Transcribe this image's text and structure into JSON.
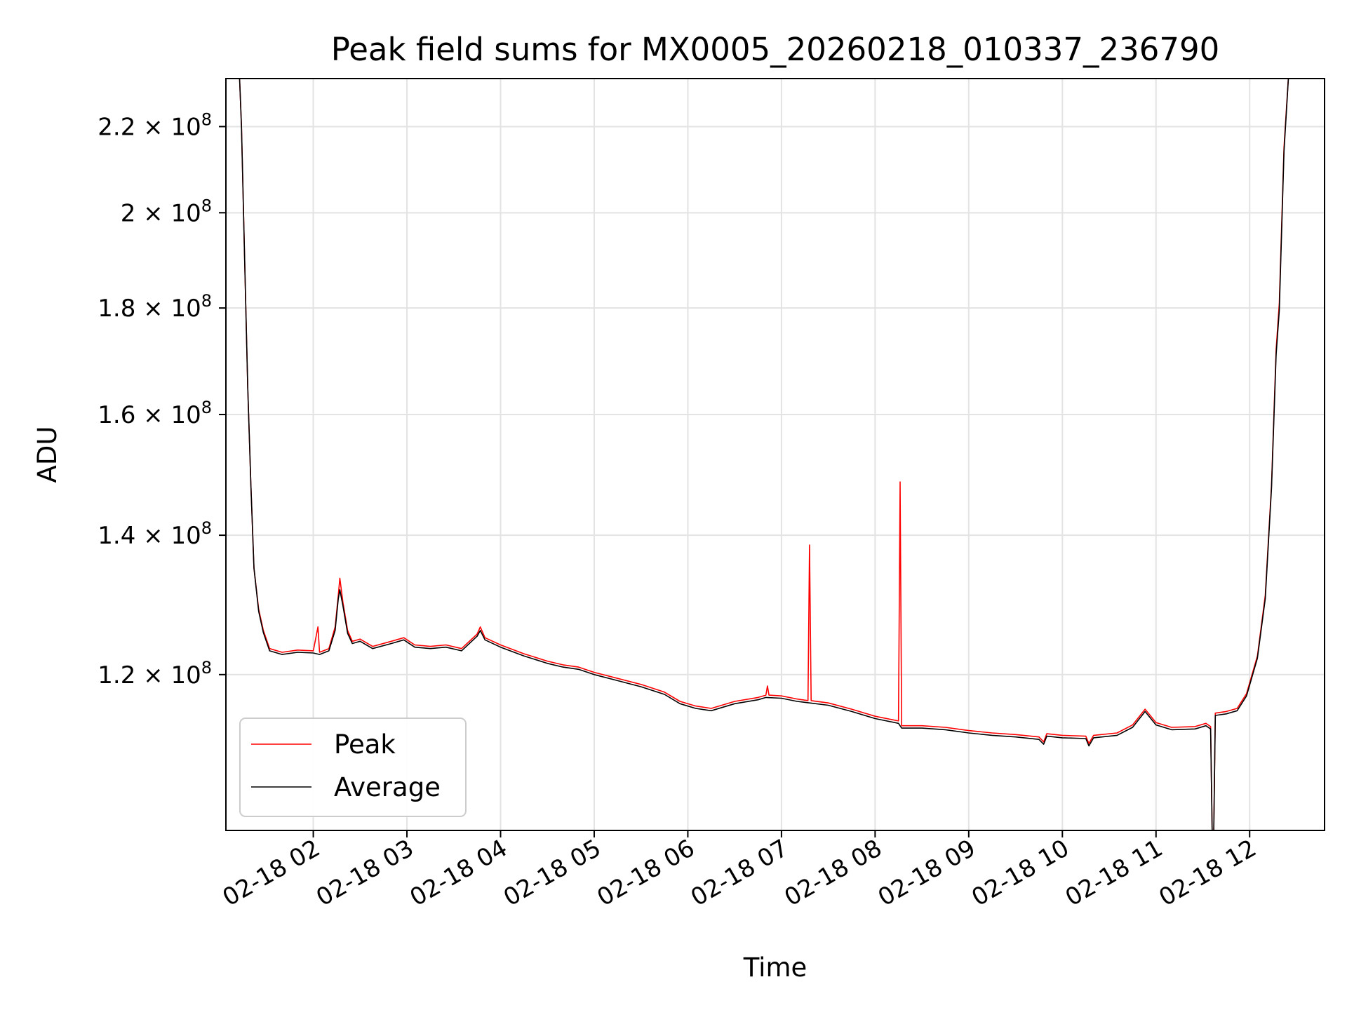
{
  "chart_data": {
    "type": "line",
    "title": "Peak field sums for MX0005_20260218_010337_236790",
    "xlabel": "Time",
    "ylabel": "ADU",
    "x_axis_type": "datetime",
    "xlim": [
      "2026-02-18 01:04",
      "2026-02-18 12:48"
    ],
    "ylim": [
      101000000,
      232000000
    ],
    "y_scale": "log",
    "grid": true,
    "legend_position": "lower-left",
    "colors": {
      "Peak": "#ff0000",
      "Average": "#000000"
    },
    "x_ticks": [
      "02-18 02",
      "02-18 03",
      "02-18 04",
      "02-18 05",
      "02-18 06",
      "02-18 07",
      "02-18 08",
      "02-18 09",
      "02-18 10",
      "02-18 11",
      "02-18 12"
    ],
    "y_ticks": [
      {
        "value": 120000000,
        "mantissa": "1.2",
        "exponent": "8"
      },
      {
        "value": 140000000,
        "mantissa": "1.4",
        "exponent": "8"
      },
      {
        "value": 160000000,
        "mantissa": "1.6",
        "exponent": "8"
      },
      {
        "value": 180000000,
        "mantissa": "1.8",
        "exponent": "8"
      },
      {
        "value": 200000000,
        "mantissa": "2",
        "exponent": "8"
      },
      {
        "value": 220000000,
        "mantissa": "2.2",
        "exponent": "8"
      }
    ],
    "series": [
      {
        "name": "Peak",
        "points": [
          [
            "2026-02-18 01:12",
            240000000
          ],
          [
            "2026-02-18 01:14",
            220000000
          ],
          [
            "2026-02-18 01:16",
            190000000
          ],
          [
            "2026-02-18 01:18",
            165000000
          ],
          [
            "2026-02-18 01:20",
            148000000
          ],
          [
            "2026-02-18 01:22",
            135000000
          ],
          [
            "2026-02-18 01:25",
            129000000
          ],
          [
            "2026-02-18 01:28",
            126000000
          ],
          [
            "2026-02-18 01:32",
            123500000
          ],
          [
            "2026-02-18 01:40",
            123000000
          ],
          [
            "2026-02-18 01:50",
            123300000
          ],
          [
            "2026-02-18 02:00",
            123200000
          ],
          [
            "2026-02-18 02:03",
            126500000
          ],
          [
            "2026-02-18 02:04",
            123000000
          ],
          [
            "2026-02-18 02:10",
            123500000
          ],
          [
            "2026-02-18 02:14",
            126500000
          ],
          [
            "2026-02-18 02:16",
            131000000
          ],
          [
            "2026-02-18 02:17",
            133500000
          ],
          [
            "2026-02-18 02:19",
            130000000
          ],
          [
            "2026-02-18 02:22",
            126000000
          ],
          [
            "2026-02-18 02:25",
            124500000
          ],
          [
            "2026-02-18 02:30",
            124800000
          ],
          [
            "2026-02-18 02:38",
            123800000
          ],
          [
            "2026-02-18 02:50",
            124500000
          ],
          [
            "2026-02-18 02:58",
            125000000
          ],
          [
            "2026-02-18 03:05",
            124000000
          ],
          [
            "2026-02-18 03:15",
            123800000
          ],
          [
            "2026-02-18 03:25",
            124000000
          ],
          [
            "2026-02-18 03:35",
            123500000
          ],
          [
            "2026-02-18 03:45",
            125500000
          ],
          [
            "2026-02-18 03:47",
            126500000
          ],
          [
            "2026-02-18 03:50",
            125000000
          ],
          [
            "2026-02-18 04:00",
            124000000
          ],
          [
            "2026-02-18 04:15",
            122800000
          ],
          [
            "2026-02-18 04:30",
            121800000
          ],
          [
            "2026-02-18 04:40",
            121300000
          ],
          [
            "2026-02-18 04:50",
            121000000
          ],
          [
            "2026-02-18 05:00",
            120300000
          ],
          [
            "2026-02-18 05:15",
            119500000
          ],
          [
            "2026-02-18 05:30",
            118700000
          ],
          [
            "2026-02-18 05:45",
            117700000
          ],
          [
            "2026-02-18 05:55",
            116500000
          ],
          [
            "2026-02-18 06:05",
            115900000
          ],
          [
            "2026-02-18 06:15",
            115600000
          ],
          [
            "2026-02-18 06:30",
            116500000
          ],
          [
            "2026-02-18 06:45",
            117000000
          ],
          [
            "2026-02-18 06:50",
            117300000
          ],
          [
            "2026-02-18 06:51",
            118500000
          ],
          [
            "2026-02-18 06:52",
            117300000
          ],
          [
            "2026-02-18 07:00",
            117200000
          ],
          [
            "2026-02-18 07:10",
            116800000
          ],
          [
            "2026-02-18 07:17",
            116600000
          ],
          [
            "2026-02-18 07:18",
            138500000
          ],
          [
            "2026-02-18 07:19",
            116600000
          ],
          [
            "2026-02-18 07:30",
            116300000
          ],
          [
            "2026-02-18 07:45",
            115500000
          ],
          [
            "2026-02-18 08:00",
            114600000
          ],
          [
            "2026-02-18 08:15",
            114000000
          ],
          [
            "2026-02-18 08:16",
            148500000
          ],
          [
            "2026-02-18 08:17",
            113400000
          ],
          [
            "2026-02-18 08:30",
            113400000
          ],
          [
            "2026-02-18 08:45",
            113200000
          ],
          [
            "2026-02-18 09:00",
            112800000
          ],
          [
            "2026-02-18 09:15",
            112500000
          ],
          [
            "2026-02-18 09:30",
            112300000
          ],
          [
            "2026-02-18 09:45",
            112000000
          ],
          [
            "2026-02-18 09:48",
            111400000
          ],
          [
            "2026-02-18 09:50",
            112400000
          ],
          [
            "2026-02-18 10:00",
            112200000
          ],
          [
            "2026-02-18 10:15",
            112100000
          ],
          [
            "2026-02-18 10:17",
            111200000
          ],
          [
            "2026-02-18 10:20",
            112200000
          ],
          [
            "2026-02-18 10:35",
            112500000
          ],
          [
            "2026-02-18 10:45",
            113500000
          ],
          [
            "2026-02-18 10:53",
            115500000
          ],
          [
            "2026-02-18 11:00",
            113800000
          ],
          [
            "2026-02-18 11:10",
            113200000
          ],
          [
            "2026-02-18 11:25",
            113300000
          ],
          [
            "2026-02-18 11:32",
            113700000
          ],
          [
            "2026-02-18 11:35",
            113300000
          ],
          [
            "2026-02-18 11:36",
            101000000
          ],
          [
            "2026-02-18 11:37",
            101000000
          ],
          [
            "2026-02-18 11:38",
            115000000
          ],
          [
            "2026-02-18 11:45",
            115200000
          ],
          [
            "2026-02-18 11:52",
            115600000
          ],
          [
            "2026-02-18 11:58",
            117500000
          ],
          [
            "2026-02-18 12:05",
            122500000
          ],
          [
            "2026-02-18 12:10",
            131000000
          ],
          [
            "2026-02-18 12:14",
            148000000
          ],
          [
            "2026-02-18 12:17",
            172000000
          ],
          [
            "2026-02-18 12:19",
            181000000
          ],
          [
            "2026-02-18 12:22",
            215000000
          ],
          [
            "2026-02-18 12:26",
            240000000
          ]
        ]
      },
      {
        "name": "Average",
        "points": [
          [
            "2026-02-18 01:12",
            240000000
          ],
          [
            "2026-02-18 01:14",
            220000000
          ],
          [
            "2026-02-18 01:16",
            190000000
          ],
          [
            "2026-02-18 01:18",
            165000000
          ],
          [
            "2026-02-18 01:20",
            148000000
          ],
          [
            "2026-02-18 01:22",
            135000000
          ],
          [
            "2026-02-18 01:25",
            128700000
          ],
          [
            "2026-02-18 01:28",
            125700000
          ],
          [
            "2026-02-18 01:32",
            123200000
          ],
          [
            "2026-02-18 01:40",
            122700000
          ],
          [
            "2026-02-18 01:50",
            123000000
          ],
          [
            "2026-02-18 02:00",
            122900000
          ],
          [
            "2026-02-18 02:04",
            122700000
          ],
          [
            "2026-02-18 02:10",
            123200000
          ],
          [
            "2026-02-18 02:14",
            126000000
          ],
          [
            "2026-02-18 02:16",
            130500000
          ],
          [
            "2026-02-18 02:17",
            131800000
          ],
          [
            "2026-02-18 02:19",
            129500000
          ],
          [
            "2026-02-18 02:22",
            125600000
          ],
          [
            "2026-02-18 02:25",
            124200000
          ],
          [
            "2026-02-18 02:30",
            124500000
          ],
          [
            "2026-02-18 02:38",
            123500000
          ],
          [
            "2026-02-18 02:50",
            124200000
          ],
          [
            "2026-02-18 02:58",
            124700000
          ],
          [
            "2026-02-18 03:05",
            123700000
          ],
          [
            "2026-02-18 03:15",
            123500000
          ],
          [
            "2026-02-18 03:25",
            123700000
          ],
          [
            "2026-02-18 03:35",
            123200000
          ],
          [
            "2026-02-18 03:45",
            125200000
          ],
          [
            "2026-02-18 03:47",
            126000000
          ],
          [
            "2026-02-18 03:50",
            124700000
          ],
          [
            "2026-02-18 04:00",
            123700000
          ],
          [
            "2026-02-18 04:15",
            122500000
          ],
          [
            "2026-02-18 04:30",
            121500000
          ],
          [
            "2026-02-18 04:40",
            121000000
          ],
          [
            "2026-02-18 04:50",
            120700000
          ],
          [
            "2026-02-18 05:00",
            120000000
          ],
          [
            "2026-02-18 05:15",
            119200000
          ],
          [
            "2026-02-18 05:30",
            118400000
          ],
          [
            "2026-02-18 05:45",
            117400000
          ],
          [
            "2026-02-18 05:55",
            116200000
          ],
          [
            "2026-02-18 06:05",
            115600000
          ],
          [
            "2026-02-18 06:15",
            115300000
          ],
          [
            "2026-02-18 06:30",
            116200000
          ],
          [
            "2026-02-18 06:45",
            116700000
          ],
          [
            "2026-02-18 06:50",
            117000000
          ],
          [
            "2026-02-18 07:00",
            116900000
          ],
          [
            "2026-02-18 07:10",
            116500000
          ],
          [
            "2026-02-18 07:18",
            116300000
          ],
          [
            "2026-02-18 07:30",
            116000000
          ],
          [
            "2026-02-18 07:45",
            115200000
          ],
          [
            "2026-02-18 08:00",
            114300000
          ],
          [
            "2026-02-18 08:15",
            113700000
          ],
          [
            "2026-02-18 08:17",
            113100000
          ],
          [
            "2026-02-18 08:30",
            113100000
          ],
          [
            "2026-02-18 08:45",
            112900000
          ],
          [
            "2026-02-18 09:00",
            112500000
          ],
          [
            "2026-02-18 09:15",
            112200000
          ],
          [
            "2026-02-18 09:30",
            112000000
          ],
          [
            "2026-02-18 09:45",
            111700000
          ],
          [
            "2026-02-18 09:48",
            111100000
          ],
          [
            "2026-02-18 09:50",
            112100000
          ],
          [
            "2026-02-18 10:00",
            111900000
          ],
          [
            "2026-02-18 10:15",
            111800000
          ],
          [
            "2026-02-18 10:17",
            110900000
          ],
          [
            "2026-02-18 10:20",
            111900000
          ],
          [
            "2026-02-18 10:35",
            112200000
          ],
          [
            "2026-02-18 10:45",
            113200000
          ],
          [
            "2026-02-18 10:53",
            115200000
          ],
          [
            "2026-02-18 11:00",
            113500000
          ],
          [
            "2026-02-18 11:10",
            112900000
          ],
          [
            "2026-02-18 11:25",
            113000000
          ],
          [
            "2026-02-18 11:32",
            113400000
          ],
          [
            "2026-02-18 11:35",
            113000000
          ],
          [
            "2026-02-18 11:36",
            101000000
          ],
          [
            "2026-02-18 11:37",
            101000000
          ],
          [
            "2026-02-18 11:38",
            114700000
          ],
          [
            "2026-02-18 11:45",
            114900000
          ],
          [
            "2026-02-18 11:52",
            115300000
          ],
          [
            "2026-02-18 11:58",
            117200000
          ],
          [
            "2026-02-18 12:05",
            122200000
          ],
          [
            "2026-02-18 12:10",
            130500000
          ],
          [
            "2026-02-18 12:14",
            147500000
          ],
          [
            "2026-02-18 12:17",
            171000000
          ],
          [
            "2026-02-18 12:19",
            179500000
          ],
          [
            "2026-02-18 12:22",
            214000000
          ],
          [
            "2026-02-18 12:26",
            240000000
          ]
        ]
      }
    ]
  }
}
